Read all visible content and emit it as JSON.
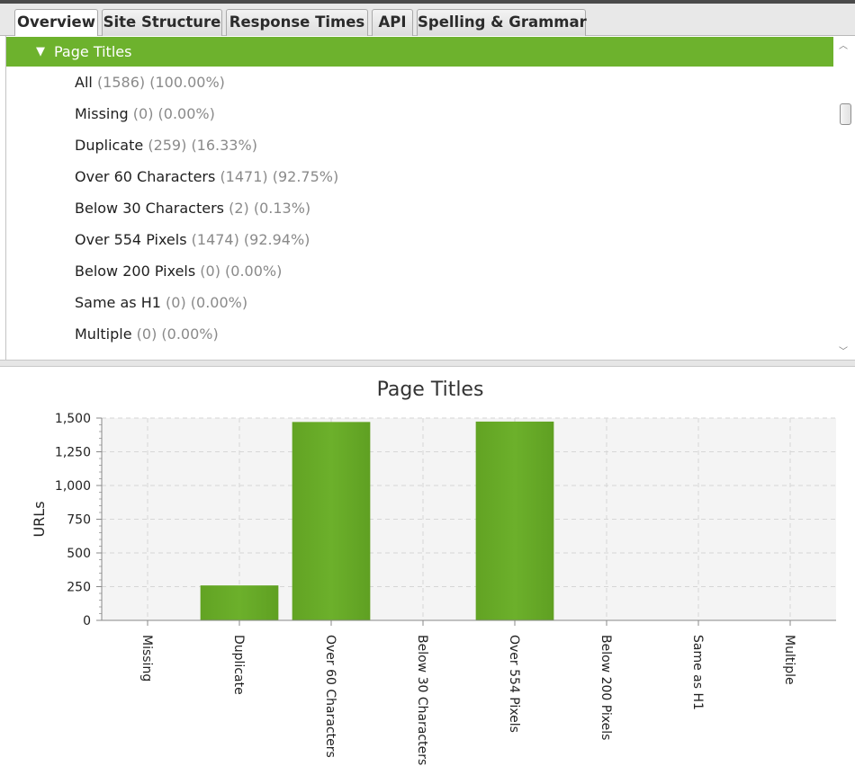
{
  "tabs": [
    {
      "label": "Overview",
      "active": true
    },
    {
      "label": "Site Structure",
      "active": false
    },
    {
      "label": "Response Times",
      "active": false
    },
    {
      "label": "API",
      "active": false
    },
    {
      "label": "Spelling & Grammar",
      "active": false
    }
  ],
  "tree": {
    "header": "Page Titles",
    "items": [
      {
        "label": "All",
        "count": "(1586) (100.00%)"
      },
      {
        "label": "Missing",
        "count": "(0) (0.00%)"
      },
      {
        "label": "Duplicate",
        "count": "(259) (16.33%)"
      },
      {
        "label": "Over 60 Characters",
        "count": "(1471) (92.75%)"
      },
      {
        "label": "Below 30 Characters",
        "count": "(2) (0.13%)"
      },
      {
        "label": "Over 554 Pixels",
        "count": "(1474) (92.94%)"
      },
      {
        "label": "Below 200 Pixels",
        "count": "(0) (0.00%)"
      },
      {
        "label": "Same as H1",
        "count": "(0) (0.00%)"
      },
      {
        "label": "Multiple",
        "count": "(0) (0.00%)"
      }
    ]
  },
  "colors": {
    "accent": "#6db22d",
    "bar": "#6cb02b"
  },
  "chart_data": {
    "type": "bar",
    "title": "Page Titles",
    "ylabel": "URLs",
    "xlabel": "",
    "categories": [
      "Missing",
      "Duplicate",
      "Over 60 Characters",
      "Below 30 Characters",
      "Over 554 Pixels",
      "Below 200 Pixels",
      "Same as H1",
      "Multiple"
    ],
    "values": [
      0,
      259,
      1471,
      2,
      1474,
      0,
      0,
      0
    ],
    "ylim": [
      0,
      1500
    ],
    "yticks": [
      "0",
      "250",
      "500",
      "750",
      "1,000",
      "1,250",
      "1,500"
    ],
    "grid": true,
    "legend": "none"
  }
}
